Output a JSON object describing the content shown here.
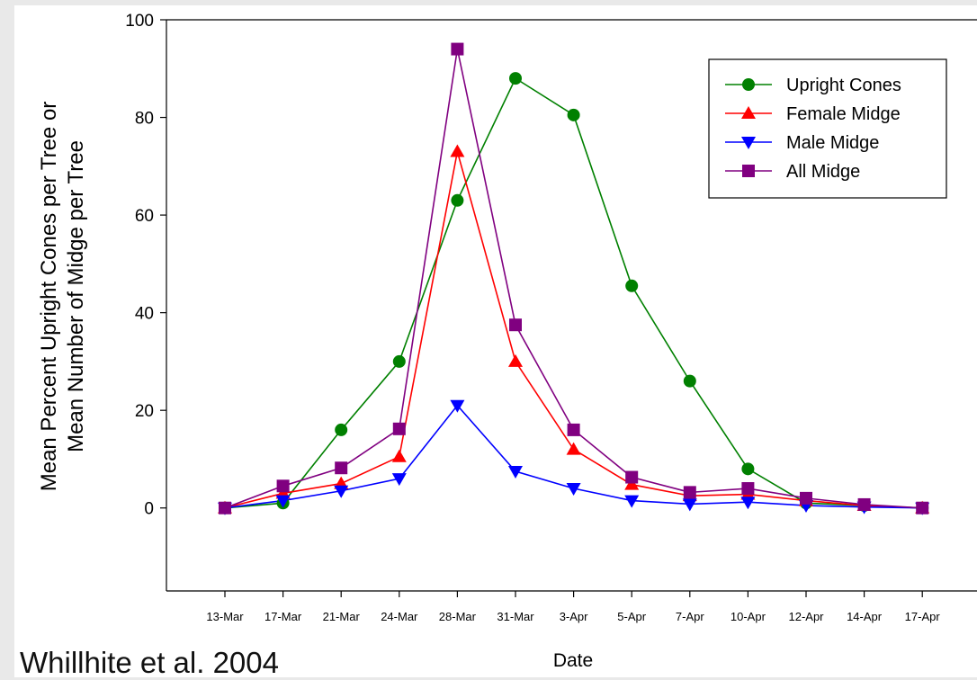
{
  "citation": "Whillhite et al. 2004",
  "chart_data": {
    "type": "line",
    "title": "",
    "xlabel": "Date",
    "ylabel_lines": [
      "Mean Percent Upright Cones per Tree or",
      "Mean Number of Midge per Tree"
    ],
    "categories": [
      "13-Mar",
      "17-Mar",
      "21-Mar",
      "24-Mar",
      "28-Mar",
      "31-Mar",
      "3-Apr",
      "5-Apr",
      "7-Apr",
      "10-Apr",
      "12-Apr",
      "14-Apr",
      "17-Apr"
    ],
    "ylim": [
      -17,
      100
    ],
    "yticks": [
      0,
      20,
      40,
      60,
      80,
      100
    ],
    "grid": false,
    "legend_position": "top-right",
    "series": [
      {
        "name": "Upright Cones",
        "color": "#008000",
        "marker": "circle",
        "values": [
          0,
          1,
          16,
          30,
          63,
          88,
          80.5,
          45.5,
          26,
          8,
          1,
          0.5,
          0
        ]
      },
      {
        "name": "Female Midge",
        "color": "#ff0000",
        "marker": "triangle-up",
        "values": [
          0,
          3,
          5,
          10.5,
          73,
          30,
          12,
          4.8,
          2.5,
          2.8,
          1.5,
          0.5,
          0
        ]
      },
      {
        "name": "Male Midge",
        "color": "#0000ff",
        "marker": "triangle-down",
        "values": [
          0,
          1.5,
          3.5,
          6,
          21,
          7.5,
          4,
          1.5,
          0.8,
          1.2,
          0.5,
          0.2,
          0
        ]
      },
      {
        "name": "All Midge",
        "color": "#800080",
        "marker": "square",
        "values": [
          0,
          4.5,
          8.2,
          16.2,
          94,
          37.5,
          16,
          6.3,
          3.2,
          4,
          2,
          0.7,
          0
        ]
      }
    ]
  }
}
